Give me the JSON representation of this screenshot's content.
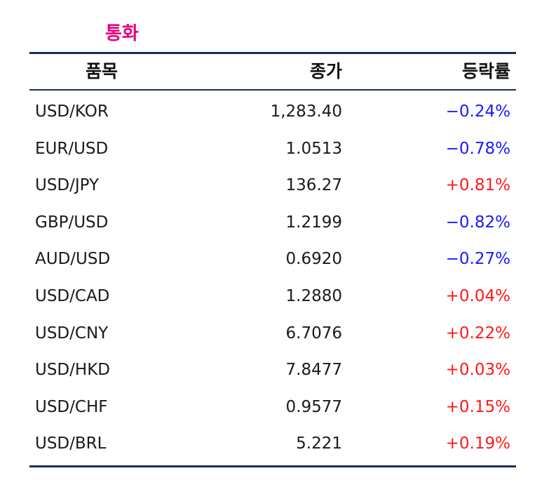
{
  "title": "통화",
  "colors": {
    "title": "#e6007e",
    "rule": "#1c2e54",
    "down": "#1a1aff",
    "up": "#ff1a1a"
  },
  "header": {
    "item": "품목",
    "close": "종가",
    "change": "등락률"
  },
  "rows": [
    {
      "item": "USD/KOR",
      "close": "1,283.40",
      "change": "−0.24%",
      "dir": "down"
    },
    {
      "item": "EUR/USD",
      "close": "1.0513",
      "change": "−0.78%",
      "dir": "down"
    },
    {
      "item": "USD/JPY",
      "close": "136.27",
      "change": "+0.81%",
      "dir": "up"
    },
    {
      "item": "GBP/USD",
      "close": "1.2199",
      "change": "−0.82%",
      "dir": "down"
    },
    {
      "item": "AUD/USD",
      "close": "0.6920",
      "change": "−0.27%",
      "dir": "down"
    },
    {
      "item": "USD/CAD",
      "close": "1.2880",
      "change": "+0.04%",
      "dir": "up"
    },
    {
      "item": "USD/CNY",
      "close": "6.7076",
      "change": "+0.22%",
      "dir": "up"
    },
    {
      "item": "USD/HKD",
      "close": "7.8477",
      "change": "+0.03%",
      "dir": "up"
    },
    {
      "item": "USD/CHF",
      "close": "0.9577",
      "change": "+0.15%",
      "dir": "up"
    },
    {
      "item": "USD/BRL",
      "close": "5.221",
      "change": "+0.19%",
      "dir": "up"
    }
  ]
}
